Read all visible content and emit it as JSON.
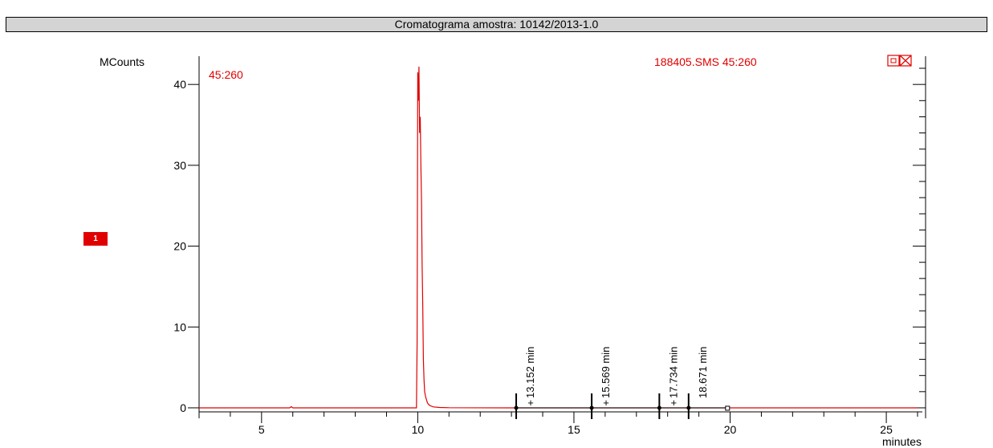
{
  "header": {
    "title": "Cromatograma amostra: 10142/2013-1.0"
  },
  "trace_badge": "1",
  "chart_data": {
    "type": "line",
    "ylabel": "MCounts",
    "xlabel": "minutes",
    "trace_label": "45:260",
    "file_label": "188405.SMS 45:260",
    "xlim": [
      3,
      26
    ],
    "ylim": [
      -0.5,
      42.5
    ],
    "x_ticks": [
      5,
      10,
      15,
      20,
      25
    ],
    "y_ticks": [
      0,
      10,
      20,
      30,
      40
    ],
    "line_color": "#e00000",
    "series": [
      {
        "x": [
          3,
          5.9,
          5.95,
          6.0,
          9.96,
          9.98,
          10.0,
          10.02,
          10.04,
          10.06,
          10.08,
          10.1,
          10.12,
          10.14,
          10.16,
          10.18,
          10.2,
          10.22,
          10.25,
          10.28,
          10.31,
          10.35,
          10.4,
          10.5,
          10.7,
          11.0,
          13.0,
          26
        ],
        "y": [
          0,
          0,
          0.15,
          0,
          0,
          8,
          41.5,
          38,
          42.2,
          34,
          36,
          30,
          25.5,
          18,
          13,
          6,
          3.5,
          2,
          1.4,
          1.0,
          0.6,
          0.4,
          0.25,
          0.12,
          0.05,
          0.02,
          0,
          0
        ]
      }
    ],
    "markers": [
      {
        "x": 13.152,
        "label": "13.152 min"
      },
      {
        "x": 15.569,
        "label": "15.569 min"
      },
      {
        "x": 17.734,
        "label": "17.734 min"
      },
      {
        "x": 18.671,
        "label": "18.671 min"
      }
    ],
    "marker_ends": [
      18.671
    ]
  }
}
